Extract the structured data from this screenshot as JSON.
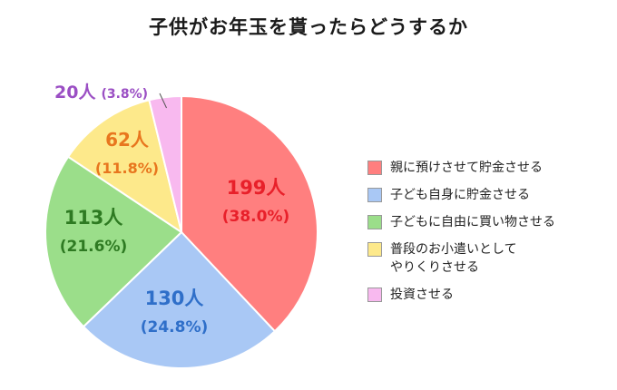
{
  "chart_data": {
    "type": "pie",
    "title": "子供がお年玉を貰ったらどうするか",
    "slices": [
      {
        "label": "親に預けさせて貯金させる",
        "value": 199,
        "value_text": "199人",
        "percent_text": "(38.0%)",
        "fill": "#ff7f7f",
        "label_color": "#e8202a"
      },
      {
        "label": "子ども自身に貯金させる",
        "value": 130,
        "value_text": "130人",
        "percent_text": "(24.8%)",
        "fill": "#a9c8f5",
        "label_color": "#2f6fc9"
      },
      {
        "label": "子どもに自由に買い物させる",
        "value": 113,
        "value_text": "113人",
        "percent_text": "(21.6%)",
        "fill": "#9bde8a",
        "label_color": "#2e7a22"
      },
      {
        "label": "普段のお小遣いとして\nやりくりさせる",
        "value": 62,
        "value_text": "62人",
        "percent_text": "(11.8%)",
        "fill": "#fde98b",
        "label_color": "#e8761e"
      },
      {
        "label": "投資させる",
        "value": 20,
        "value_text": "20人",
        "percent_text": "(3.8%)",
        "fill": "#f8b9ef",
        "label_color": "#9b4fc4"
      }
    ],
    "start_angle": "12 o'clock",
    "direction": "clockwise",
    "legend_position": "right"
  }
}
